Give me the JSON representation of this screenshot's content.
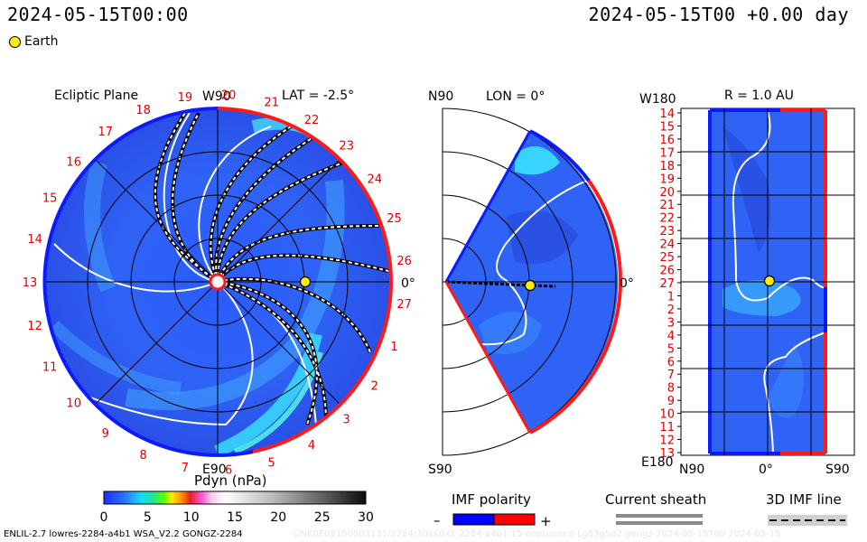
{
  "header": {
    "time_left": "2024-05-15T00:00",
    "time_right": "2024-05-15T00 +0.00 day",
    "legend_earth": "Earth"
  },
  "panels": {
    "ecliptic": {
      "title": "Ecliptic Plane",
      "lat_label": "LAT = -2.5°",
      "top_label": "W90",
      "bottom_label": "E90",
      "right_label": "0°",
      "carrington_labels": [
        "19",
        "20",
        "21",
        "22",
        "23",
        "24",
        "25",
        "26",
        "27",
        "1",
        "2",
        "3",
        "4",
        "5",
        "6",
        "7",
        "8",
        "9",
        "10",
        "11",
        "12",
        "13",
        "14",
        "15",
        "16",
        "17",
        "18"
      ]
    },
    "meridional": {
      "n_label": "N90",
      "s_label": "S90",
      "lon_label": "LON = 0°",
      "right_label": "0°"
    },
    "map": {
      "title": "R = 1.0 AU",
      "top_left": "W180",
      "bottom_left": "E180",
      "y_labels": [
        "14",
        "15",
        "16",
        "17",
        "18",
        "19",
        "20",
        "21",
        "22",
        "23",
        "24",
        "25",
        "26",
        "27",
        "1",
        "2",
        "3",
        "4",
        "5",
        "6",
        "7",
        "8",
        "9",
        "10",
        "11",
        "12",
        "13"
      ],
      "x_labels": [
        "N90",
        "0°",
        "S90"
      ]
    }
  },
  "colorbar": {
    "title": "Pdyn (nPa)",
    "ticks": [
      "0",
      "5",
      "10",
      "15",
      "20",
      "25",
      "30"
    ],
    "range": [
      0,
      30
    ]
  },
  "imf": {
    "title": "IMF polarity",
    "minus": "–",
    "plus": "+",
    "colors": {
      "negative": "#0000ff",
      "positive": "#ff0000"
    }
  },
  "sheath": {
    "title": "Current sheath"
  },
  "imf_line": {
    "title": "3D IMF line"
  },
  "footer": {
    "left": "ENLIL-2.7 lowres-2284-a4b1 WSA_V2.2 GONGZ-2284",
    "watermark": "UNK0E05180003131/2284/30x60x1 2284-a4b1.15-noptunncd-Lg53g5d2.gongz-2024-05-15T00 2024-05-15"
  },
  "chart_data": {
    "type": "heatmap",
    "title": "Pdyn (nPa)",
    "ylim": [
      0,
      30
    ],
    "earth_position": {
      "lon_deg": 0,
      "lat_deg": 0,
      "r_au": 1.0
    }
  }
}
